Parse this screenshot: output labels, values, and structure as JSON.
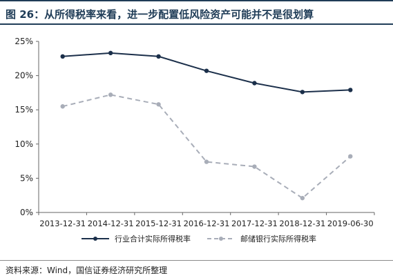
{
  "title": "图 26：从所得税率来看，进一步配置低风险资产可能并不是很划算",
  "source": "资料来源：Wind，国信证券经济研究所整理",
  "colors": {
    "series_1": "#1b2f4a",
    "series_2": "#a8adb8",
    "title": "#1f3c57"
  },
  "chart_data": {
    "type": "line",
    "categories": [
      "2013-12-31",
      "2014-12-31",
      "2015-12-31",
      "2016-12-31",
      "2017-12-31",
      "2018-12-31",
      "2019-06-30"
    ],
    "y_ticks": [
      "0%",
      "5%",
      "10%",
      "15%",
      "20%",
      "25%"
    ],
    "ylim": [
      0,
      25
    ],
    "grid": false,
    "legend_position": "bottom",
    "series": [
      {
        "name": "行业合计实际所得税率",
        "style": "solid",
        "values": [
          22.8,
          23.3,
          22.8,
          20.7,
          18.9,
          17.6,
          17.9
        ]
      },
      {
        "name": "邮储银行实际所得税率",
        "style": "dashed",
        "values": [
          15.5,
          17.2,
          15.8,
          7.4,
          6.7,
          2.1,
          8.2
        ]
      }
    ]
  }
}
